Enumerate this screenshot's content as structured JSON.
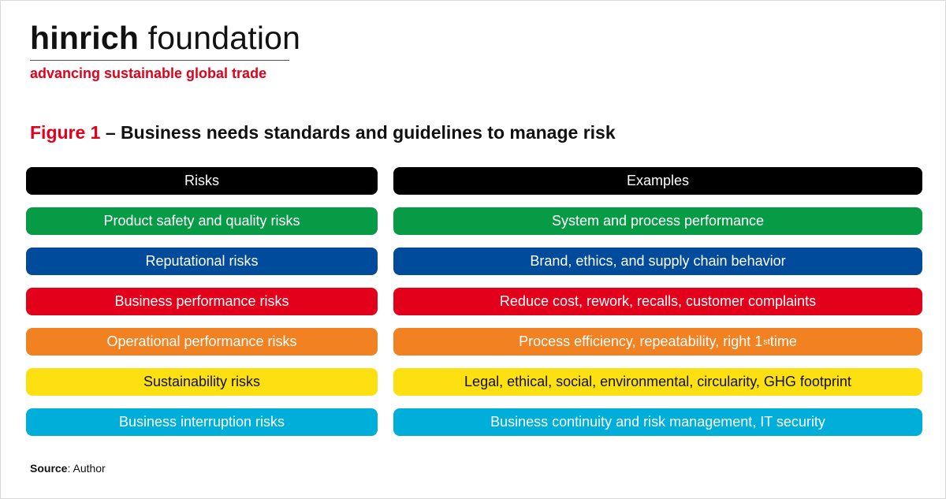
{
  "brand": {
    "name_bold": "hinrich",
    "name_regular": " foundation",
    "tagline": "advancing sustainable global trade"
  },
  "figure": {
    "label": "Figure 1",
    "title": " – Business needs standards and guidelines to manage risk"
  },
  "table": {
    "left_header": "Risks",
    "right_header": "Examples",
    "rows": [
      {
        "risk": "Product safety and quality risks",
        "example": "System and process performance",
        "color": "#079b46",
        "text_color": "#ffffff"
      },
      {
        "risk": "Reputational risks",
        "example": "Brand, ethics, and supply chain behavior",
        "color": "#004b9b",
        "text_color": "#ffffff"
      },
      {
        "risk": "Business performance risks",
        "example": "Reduce cost, rework, recalls, customer complaints",
        "color": "#e2001a",
        "text_color": "#ffffff"
      },
      {
        "risk": "Operational performance risks",
        "example": "Process efficiency, repeatability, right 1",
        "example_sup": "st",
        "example_after": " time",
        "color": "#f28121",
        "text_color": "#ffffff"
      },
      {
        "risk": "Sustainability risks",
        "example": "Legal, ethical, social, environmental, circularity, GHG footprint",
        "color": "#fde012",
        "text_color": "#111111"
      },
      {
        "risk": "Business interruption risks",
        "example": "Business continuity and risk management, IT security",
        "color": "#00afd9",
        "text_color": "#ffffff"
      }
    ],
    "header_color": "#000000"
  },
  "source": {
    "label": "Source",
    "text": ": Author"
  }
}
